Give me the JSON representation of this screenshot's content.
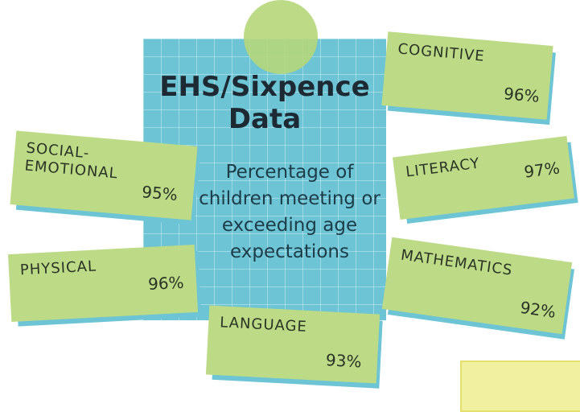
{
  "title": "EHS/Sixpence Data",
  "subtitle": "Percentage of children meeting or exceeding age expectations",
  "items": [
    {
      "label": "COGNITIVE",
      "value": "96%"
    },
    {
      "label": "SOCIAL-EMOTIONAL",
      "value": "95%"
    },
    {
      "label": "LITERACY",
      "value": "97%"
    },
    {
      "label": "PHYSICAL",
      "value": "96%"
    },
    {
      "label": "MATHEMATICS",
      "value": "92%"
    },
    {
      "label": "LANGUAGE",
      "value": "93%"
    }
  ]
}
